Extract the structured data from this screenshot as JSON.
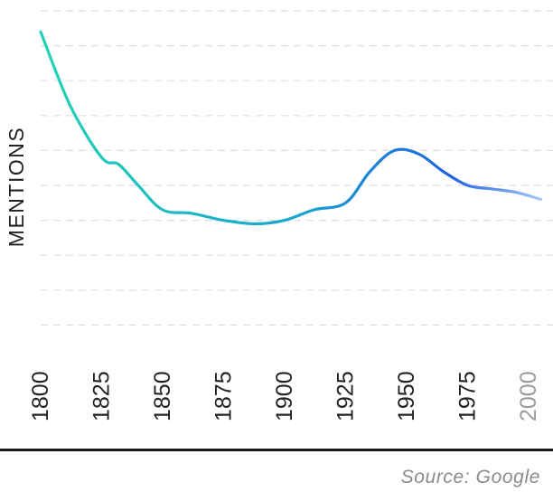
{
  "chart_data": {
    "type": "line",
    "title": "",
    "xlabel": "",
    "ylabel": "MENTIONS",
    "x_ticks": [
      "1800",
      "1825",
      "1850",
      "1875",
      "1900",
      "1925",
      "1950",
      "1975",
      "2000"
    ],
    "x_range": [
      1800,
      2010
    ],
    "y_range": [
      0,
      10
    ],
    "grid": true,
    "colors": {
      "line_start": "#22d3b4",
      "line_end": "#1e63e0",
      "line_fade": "#a9c6f5",
      "grid": "#dddddd",
      "tick_label": "#222222",
      "tick_label_future": "#9a9a9a"
    },
    "series": [
      {
        "x": [
          1800,
          1812,
          1825,
          1832,
          1840,
          1850,
          1862,
          1875,
          1888,
          1900,
          1912,
          1925,
          1935,
          1945,
          1955,
          1965,
          1975,
          1985,
          1995,
          2005
        ],
        "y": [
          9.4,
          7.3,
          5.8,
          5.6,
          5.0,
          4.3,
          4.2,
          4.0,
          3.9,
          4.0,
          4.3,
          4.5,
          5.4,
          6.0,
          5.9,
          5.4,
          5.0,
          4.9,
          4.8,
          4.6
        ]
      }
    ]
  },
  "source": "Source: Google"
}
